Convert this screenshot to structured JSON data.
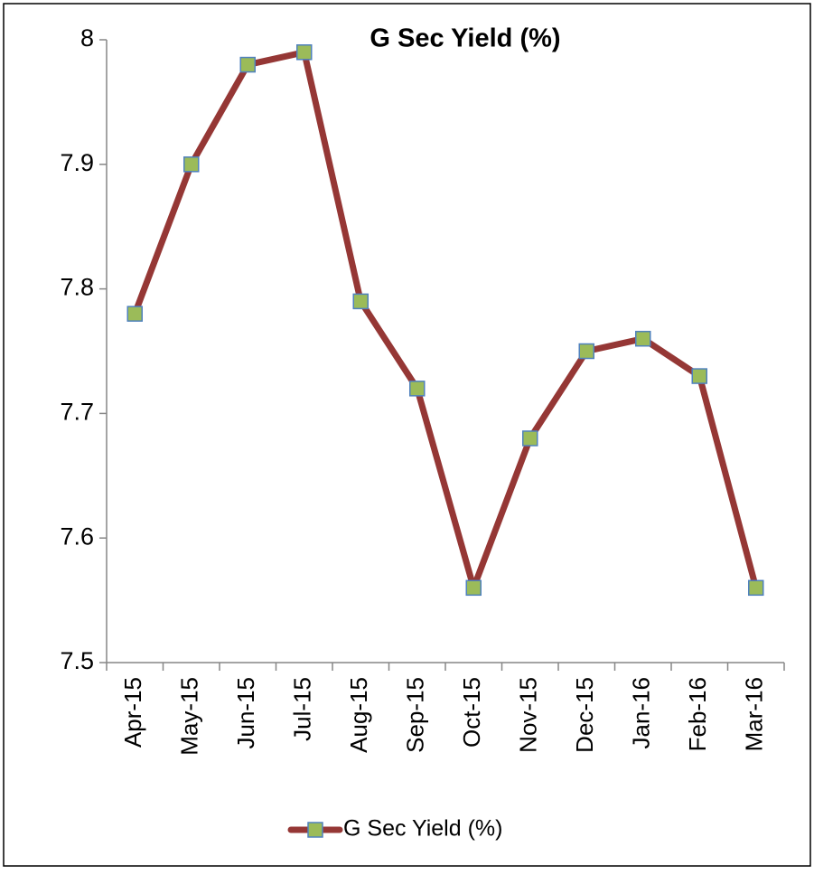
{
  "chart_data": {
    "type": "line",
    "title": "G Sec Yield (%)",
    "categories": [
      "Apr-15",
      "May-15",
      "Jun-15",
      "Jul-15",
      "Aug-15",
      "Sep-15",
      "Oct-15",
      "Nov-15",
      "Dec-15",
      "Jan-16",
      "Feb-16",
      "Mar-16"
    ],
    "series": [
      {
        "name": "G Sec Yield (%)",
        "color": "#953735",
        "marker_color": "#9bbb59",
        "marker_edge_color": "#4f81bd",
        "values": [
          7.78,
          7.9,
          7.98,
          7.99,
          7.79,
          7.72,
          7.56,
          7.68,
          7.75,
          7.76,
          7.73,
          7.56
        ]
      }
    ],
    "ylim": [
      7.5,
      8
    ],
    "yticks": [
      7.5,
      7.6,
      7.7,
      7.8,
      7.9,
      8
    ],
    "grid": false,
    "legend": "bottom"
  }
}
